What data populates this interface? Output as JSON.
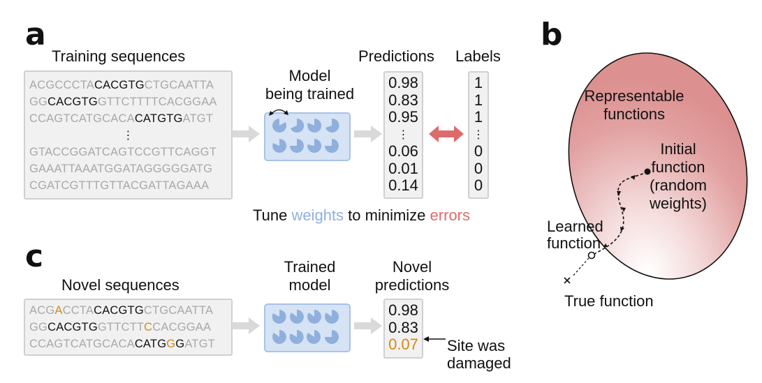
{
  "panel_a": {
    "letter": "a",
    "training_title": "Training sequences",
    "training_seqs": [
      [
        {
          "t": "ACGCCCTA",
          "c": "g"
        },
        {
          "t": "CACGTG",
          "c": "m"
        },
        {
          "t": "CTGCAATTA",
          "c": "g"
        }
      ],
      [
        {
          "t": "GG",
          "c": "g"
        },
        {
          "t": "CACGTG",
          "c": "m"
        },
        {
          "t": "GTTCTTTTCACGGAA",
          "c": "g"
        }
      ],
      [
        {
          "t": "CCAGTCATGCACA",
          "c": "g"
        },
        {
          "t": "CATGTG",
          "c": "m"
        },
        {
          "t": "ATGT",
          "c": "g"
        }
      ],
      [
        {
          "t": "GTACCGGATCAGTCCGTTCAGGT",
          "c": "g"
        }
      ],
      [
        {
          "t": "GAAATTAAATGGATAGGGGGATG",
          "c": "g"
        }
      ],
      [
        {
          "t": "CGATCGTTTGTTACGATTAGAAA",
          "c": "g"
        }
      ]
    ],
    "ellipsis": "⋮",
    "model_title_1": "Model",
    "model_title_2": "being trained",
    "predictions_title": "Predictions",
    "predictions": [
      "0.98",
      "0.83",
      "0.95",
      "⋮",
      "0.06",
      "0.01",
      "0.14"
    ],
    "labels_title": "Labels",
    "labels": [
      "1",
      "1",
      "1",
      "⋮",
      "0",
      "0",
      "0"
    ],
    "tune_prefix": "Tune ",
    "tune_weights": "weights",
    "tune_middle": " to minimize ",
    "tune_errors": "errors"
  },
  "panel_b": {
    "letter": "b",
    "representable_1": "Representable",
    "representable_2": "functions",
    "initial_1": "Initial",
    "initial_2": "function",
    "initial_3": "(random",
    "initial_4": "weights)",
    "learned_1": "Learned",
    "learned_2": "function",
    "true_label": "True function"
  },
  "panel_c": {
    "letter": "c",
    "novel_title": "Novel sequences",
    "novel_seqs": [
      [
        {
          "t": "ACG",
          "c": "g"
        },
        {
          "t": "A",
          "c": "o"
        },
        {
          "t": "CCTA",
          "c": "g"
        },
        {
          "t": "CACGTG",
          "c": "m"
        },
        {
          "t": "CTGCAATTA",
          "c": "g"
        }
      ],
      [
        {
          "t": "GG",
          "c": "g"
        },
        {
          "t": "CACGTG",
          "c": "m"
        },
        {
          "t": "GTTCTT",
          "c": "g"
        },
        {
          "t": "C",
          "c": "o"
        },
        {
          "t": "CACGGAA",
          "c": "g"
        }
      ],
      [
        {
          "t": "CCAGTCATGCACA",
          "c": "g"
        },
        {
          "t": "CATG",
          "c": "m"
        },
        {
          "t": "G",
          "c": "o"
        },
        {
          "t": "G",
          "c": "m"
        },
        {
          "t": "ATGT",
          "c": "g"
        }
      ]
    ],
    "trained_1": "Trained",
    "trained_2": "model",
    "novel_pred_1": "Novel",
    "novel_pred_2": "predictions",
    "novel_predictions": [
      "0.98",
      "0.83",
      "0.07"
    ],
    "site_1": "Site was",
    "site_2": "damaged"
  },
  "colors": {
    "motif": "#111111",
    "background_base": "#a8a8a8",
    "mutation": "#d48a12",
    "weights": "#8fb0dd",
    "errors": "#dd6b6b",
    "model_fill": "#d6e3f5"
  }
}
